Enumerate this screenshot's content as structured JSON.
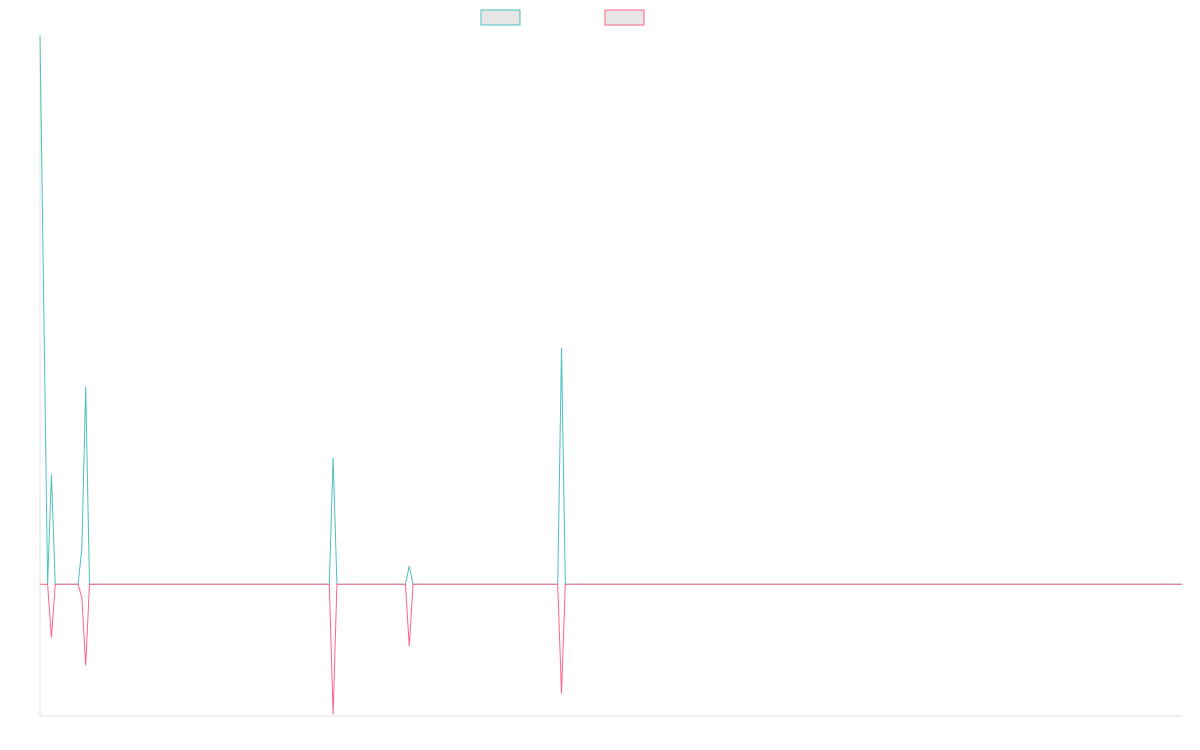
{
  "chart_data": {
    "type": "line",
    "x": [
      0,
      2,
      3,
      4,
      10,
      11,
      12,
      13,
      76,
      77,
      78,
      96,
      97,
      98,
      136,
      137,
      138,
      300
    ],
    "series": [
      {
        "color": "#4bc0c0",
        "values": [
          10,
          0,
          2,
          0,
          0,
          0.65,
          3.6,
          0,
          0,
          2.3,
          0,
          0,
          0.33,
          0,
          0,
          4.3,
          0,
          0
        ]
      },
      {
        "color": "#ff6384",
        "values": [
          0,
          0,
          -0.97,
          0,
          0,
          -0.25,
          -1.48,
          0,
          0,
          -2.37,
          0,
          0,
          -1.13,
          0,
          0,
          -1.99,
          0,
          0
        ]
      }
    ],
    "xlim": [
      0,
      300
    ],
    "ylim": [
      -2.4,
      10
    ]
  }
}
